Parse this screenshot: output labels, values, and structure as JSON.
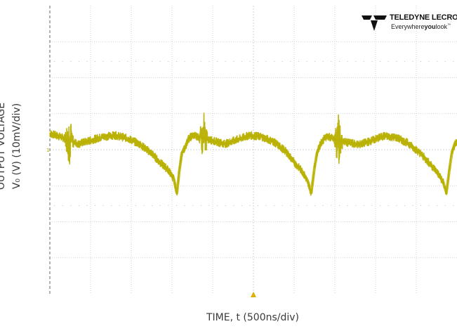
{
  "chart_data": {
    "type": "line",
    "title": "",
    "xlabel": "TIME, t (500ns/div)",
    "ylabel_line1": "OUTPUT VOLTAGE",
    "ylabel_line2": "V₀ (V) (10mV/div)",
    "grid": true,
    "x_divisions": 10,
    "y_divisions": 8,
    "x_per_div_ns": 500,
    "y_per_div_mV": 10,
    "xlim_ns": [
      0,
      5000
    ],
    "ylim_mV": [
      -40,
      40
    ],
    "ground_marker": "1",
    "trace_color": "#b8b000",
    "series": [
      {
        "ripple_period_ns": 1650,
        "spike_times_ns": [
          240,
          1890,
          3540
        ],
        "points_mv": [
          [
            0,
            4.5
          ],
          [
            100,
            3.8
          ],
          [
            200,
            3.0
          ],
          [
            350,
            1.6
          ],
          [
            500,
            2.6
          ],
          [
            650,
            3.6
          ],
          [
            800,
            4.0
          ],
          [
            950,
            3.2
          ],
          [
            1100,
            1.6
          ],
          [
            1250,
            -1.0
          ],
          [
            1350,
            -3.5
          ],
          [
            1450,
            -5.5
          ],
          [
            1520,
            -8.0
          ],
          [
            1560,
            -12.0
          ],
          [
            1590,
            -6.0
          ],
          [
            1620,
            -1.0
          ],
          [
            1660,
            0.5
          ],
          [
            1700,
            3.0
          ],
          [
            1760,
            4.0
          ],
          [
            1850,
            3.5
          ],
          [
            2000,
            2.5
          ],
          [
            2150,
            1.6
          ],
          [
            2300,
            2.8
          ],
          [
            2450,
            4.0
          ],
          [
            2600,
            3.6
          ],
          [
            2750,
            2.2
          ],
          [
            2900,
            -0.5
          ],
          [
            3000,
            -3.5
          ],
          [
            3100,
            -6.0
          ],
          [
            3170,
            -9.0
          ],
          [
            3210,
            -12.0
          ],
          [
            3250,
            -5.0
          ],
          [
            3280,
            -1.0
          ],
          [
            3330,
            2.0
          ],
          [
            3400,
            3.8
          ],
          [
            3500,
            2.8
          ],
          [
            3650,
            2.0
          ],
          [
            3800,
            1.4
          ],
          [
            3950,
            2.5
          ],
          [
            4100,
            3.8
          ],
          [
            4250,
            3.4
          ],
          [
            4400,
            1.8
          ],
          [
            4550,
            -1.0
          ],
          [
            4650,
            -3.5
          ],
          [
            4750,
            -6.0
          ],
          [
            4830,
            -9.0
          ],
          [
            4870,
            -12.0
          ],
          [
            4910,
            -5.0
          ],
          [
            4940,
            -0.5
          ],
          [
            4980,
            2.0
          ],
          [
            5000,
            2.2
          ]
        ]
      }
    ]
  },
  "logo": {
    "brand": "TELEDYNE LECROY",
    "tagline_a": "Everywhere",
    "tagline_b": "you",
    "tagline_c": "look",
    "tagline_tm": "™"
  }
}
